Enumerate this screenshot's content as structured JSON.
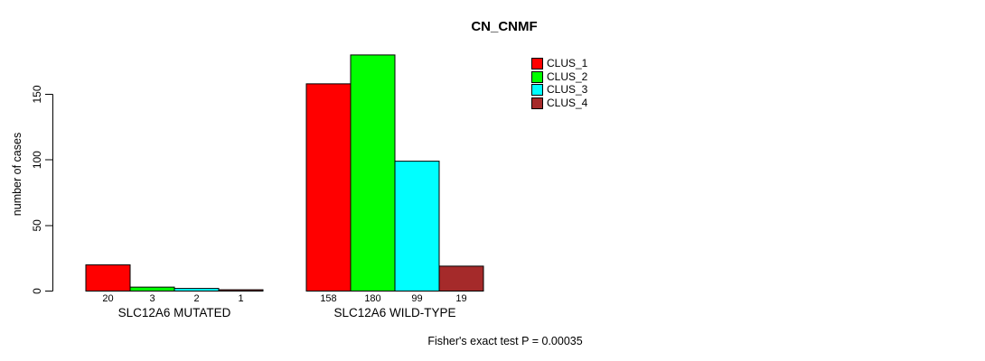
{
  "chart_data": {
    "type": "bar",
    "title": "CN_CNMF",
    "ylabel": "number of cases",
    "categories": [
      "SLC12A6 MUTATED",
      "SLC12A6 WILD-TYPE"
    ],
    "series": [
      {
        "name": "CLUS_1",
        "color": "#ff0000",
        "values": [
          20,
          158
        ]
      },
      {
        "name": "CLUS_2",
        "color": "#00ff00",
        "values": [
          3,
          180
        ]
      },
      {
        "name": "CLUS_3",
        "color": "#00ffff",
        "values": [
          2,
          99
        ]
      },
      {
        "name": "CLUS_4",
        "color": "#a52a2a",
        "values": [
          1,
          19
        ]
      }
    ],
    "yticks": [
      0,
      50,
      100,
      150
    ],
    "ylim": [
      0,
      185
    ],
    "grid": false,
    "bar_value_labels": true,
    "legend_position": "top-right",
    "annotation": "Fisher's exact test P = 0.00035"
  }
}
